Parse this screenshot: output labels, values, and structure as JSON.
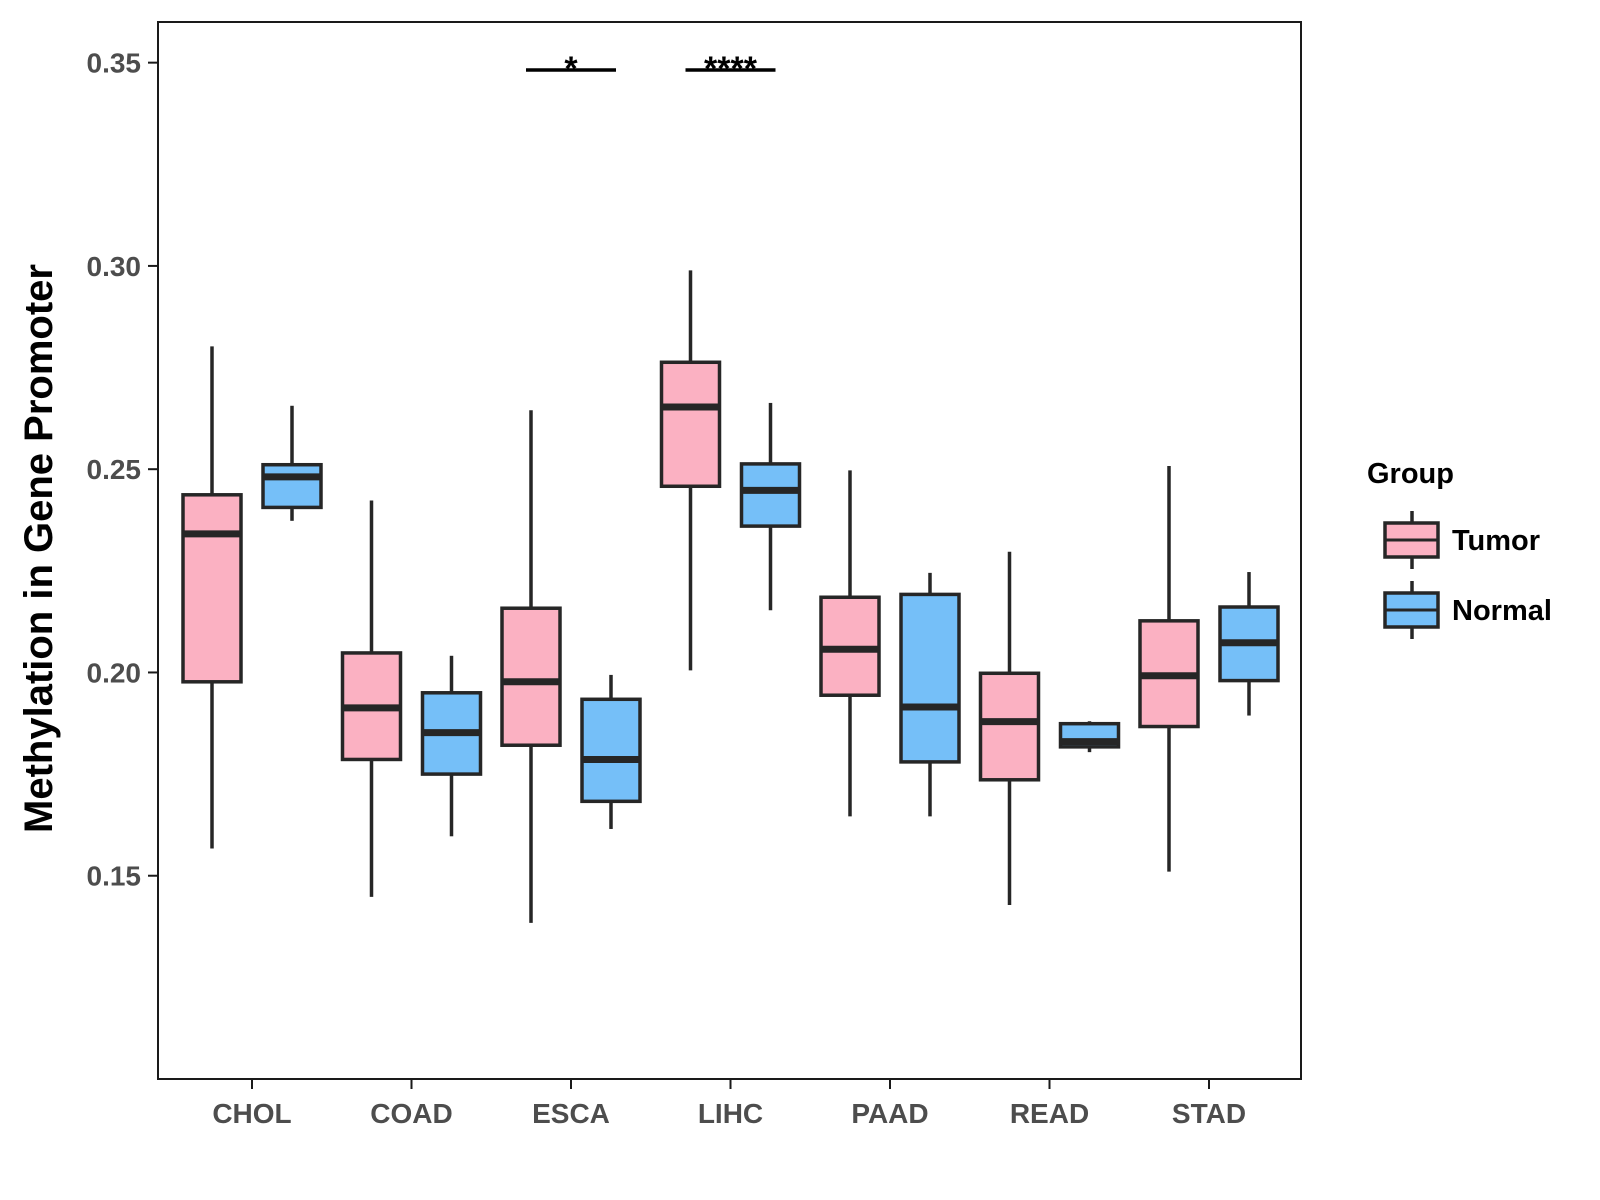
{
  "chart_data": {
    "type": "boxplot",
    "title": "",
    "xlabel": "",
    "ylabel": "Methylation in Gene Promoter",
    "ylim": [
      0.1,
      0.36
    ],
    "yticks": [
      0.15,
      0.2,
      0.25,
      0.3,
      0.35
    ],
    "ytick_labels": [
      "0.15",
      "0.20",
      "0.25",
      "0.30",
      "0.35"
    ],
    "categories": [
      "CHOL",
      "COAD",
      "ESCA",
      "LIHC",
      "PAAD",
      "READ",
      "STAD"
    ],
    "legend": {
      "title": "Group",
      "position": "right",
      "entries": [
        {
          "name": "Tumor",
          "color": "#FBB1C2"
        },
        {
          "name": "Normal",
          "color": "#75BFF8"
        }
      ]
    },
    "series": [
      {
        "name": "Tumor",
        "color": "#FBB1C2",
        "boxes": [
          {
            "category": "CHOL",
            "min": 0.1567,
            "q1": 0.1977,
            "median": 0.2341,
            "q3": 0.2437,
            "max": 0.2802
          },
          {
            "category": "COAD",
            "min": 0.1448,
            "q1": 0.1786,
            "median": 0.1913,
            "q3": 0.2048,
            "max": 0.2423
          },
          {
            "category": "ESCA",
            "min": 0.1384,
            "q1": 0.1821,
            "median": 0.1977,
            "q3": 0.2158,
            "max": 0.2645
          },
          {
            "category": "LIHC",
            "min": 0.2005,
            "q1": 0.2458,
            "median": 0.2653,
            "q3": 0.2763,
            "max": 0.2989
          },
          {
            "category": "PAAD",
            "min": 0.1646,
            "q1": 0.1944,
            "median": 0.2057,
            "q3": 0.2185,
            "max": 0.2497
          },
          {
            "category": "READ",
            "min": 0.1428,
            "q1": 0.1736,
            "median": 0.1879,
            "q3": 0.1998,
            "max": 0.2297
          },
          {
            "category": "STAD",
            "min": 0.151,
            "q1": 0.1867,
            "median": 0.1992,
            "q3": 0.2127,
            "max": 0.2508
          }
        ]
      },
      {
        "name": "Normal",
        "color": "#75BFF8",
        "boxes": [
          {
            "category": "CHOL",
            "min": 0.2373,
            "q1": 0.2406,
            "median": 0.2481,
            "q3": 0.2511,
            "max": 0.2656
          },
          {
            "category": "COAD",
            "min": 0.1597,
            "q1": 0.175,
            "median": 0.1852,
            "q3": 0.195,
            "max": 0.2041
          },
          {
            "category": "ESCA",
            "min": 0.1615,
            "q1": 0.1683,
            "median": 0.1786,
            "q3": 0.1934,
            "max": 0.1994
          },
          {
            "category": "LIHC",
            "min": 0.2153,
            "q1": 0.236,
            "median": 0.2448,
            "q3": 0.2513,
            "max": 0.2663
          },
          {
            "category": "PAAD",
            "min": 0.1646,
            "q1": 0.178,
            "median": 0.1915,
            "q3": 0.2192,
            "max": 0.2245
          },
          {
            "category": "READ",
            "min": 0.1804,
            "q1": 0.1817,
            "median": 0.183,
            "q3": 0.1874,
            "max": 0.188
          },
          {
            "category": "STAD",
            "min": 0.1894,
            "q1": 0.198,
            "median": 0.2073,
            "q3": 0.2161,
            "max": 0.2247
          }
        ]
      }
    ],
    "annotations": [
      {
        "category": "ESCA",
        "label": "*",
        "y": 0.3482
      },
      {
        "category": "LIHC",
        "label": "****",
        "y": 0.3482
      }
    ]
  }
}
